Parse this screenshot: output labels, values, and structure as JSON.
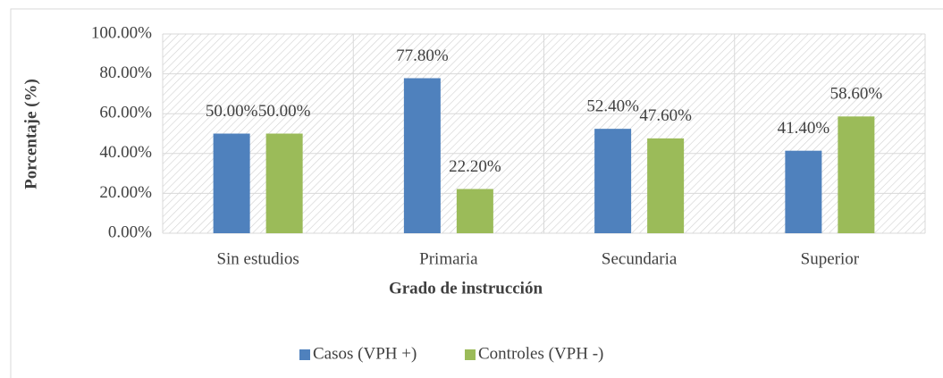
{
  "chart_data": {
    "type": "bar",
    "xlabel": "Grado de instrucción",
    "ylabel": "Porcentaje (%)",
    "categories": [
      "Sin estudios",
      "Primaria",
      "Secundaria",
      "Superior"
    ],
    "series": [
      {
        "name": "Casos (VPH +)",
        "color": "#4f81bd",
        "values": [
          50,
          77.8,
          52.4,
          41.4
        ],
        "value_labels": [
          "50.00%",
          "77.80%",
          "52.40%",
          "41.40%"
        ]
      },
      {
        "name": "Controles (VPH -)",
        "color": "#9bbb59",
        "values": [
          50,
          22.2,
          47.6,
          58.6
        ],
        "value_labels": [
          "50.00%",
          "22.20%",
          "47.60%",
          "58.60%"
        ]
      }
    ],
    "ylim": [
      0,
      100
    ],
    "yticks": [
      {
        "value": 0,
        "label": "0.00%"
      },
      {
        "value": 20,
        "label": "20.00%"
      },
      {
        "value": 40,
        "label": "40.00%"
      },
      {
        "value": 60,
        "label": "60.00%"
      },
      {
        "value": 80,
        "label": "80.00%"
      },
      {
        "value": 100,
        "label": "100.00%"
      }
    ],
    "grid": true,
    "legend": "bottom"
  }
}
